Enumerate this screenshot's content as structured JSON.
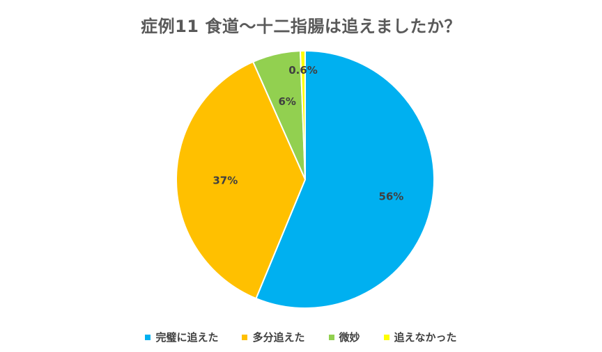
{
  "chart_data": {
    "type": "pie",
    "title": "症例11  食道〜十二指腸は追えましたか？",
    "categories": [
      "完璧に追えた",
      "多分追えた",
      "微妙",
      "追えなかった"
    ],
    "values": [
      56,
      37,
      6,
      0.6
    ],
    "labels": [
      "56%",
      "37%",
      "6%",
      "0.6%"
    ],
    "colors": [
      "#00B0F0",
      "#FFC000",
      "#92D050",
      "#FFFF00"
    ],
    "legend_position": "bottom",
    "start_angle": "12 o'clock, clockwise"
  }
}
